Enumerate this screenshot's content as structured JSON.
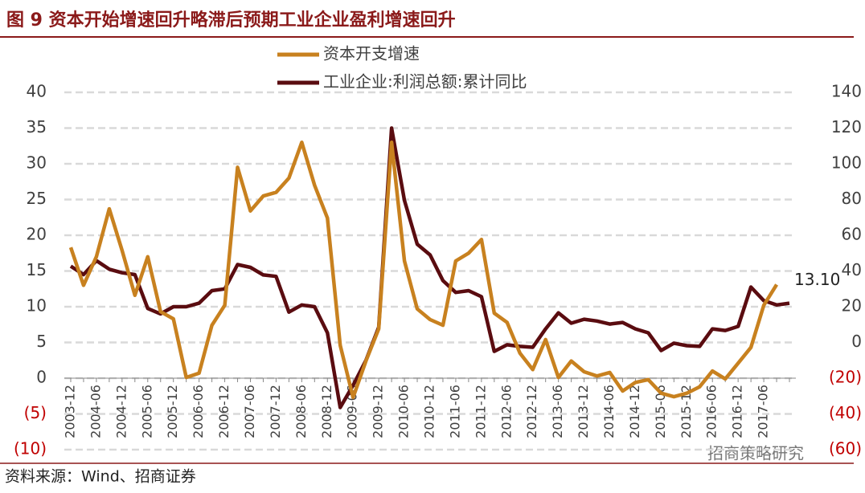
{
  "chart_data": {
    "type": "line",
    "title": "图 9  资本开始增速回升略滞后预期工业企业盈利增速回升",
    "source": "资料来源：Wind、招商证券",
    "watermark": "招商策略研究",
    "categories": [
      "2003-12",
      null,
      "2004-06",
      null,
      "2004-12",
      null,
      "2005-06",
      null,
      "2005-12",
      null,
      "2006-06",
      null,
      "2006-12",
      null,
      "2007-06",
      null,
      "2007-12",
      null,
      "2008-06",
      null,
      "2008-12",
      null,
      "2009-06",
      null,
      "2009-12",
      null,
      "2010-06",
      null,
      "2010-12",
      null,
      "2011-06",
      null,
      "2011-12",
      null,
      "2012-06",
      null,
      "2012-12",
      null,
      "2013-06",
      null,
      "2013-12",
      null,
      "2014-06",
      null,
      "2014-12",
      null,
      "2015-06",
      null,
      "2015-12",
      null,
      "2016-06",
      null,
      "2016-12",
      null,
      "2017-06",
      null,
      null
    ],
    "series": [
      {
        "name": "资本开支增速",
        "color": "#c8811f",
        "axis": "y",
        "values": [
          18.3,
          13,
          17,
          23.7,
          17.9,
          11.6,
          17,
          9.3,
          8.3,
          0.1,
          0.7,
          7.4,
          10.2,
          29.5,
          23.4,
          25.5,
          26,
          28,
          33,
          27,
          22.4,
          4.6,
          -2.7,
          2.4,
          6.9,
          33,
          16.4,
          9.7,
          8.2,
          7.4,
          16.4,
          17.5,
          19.4,
          9.1,
          7.8,
          3.5,
          1.2,
          5.4,
          0.1,
          2.4,
          0.9,
          0.3,
          0.8,
          -1.8,
          -0.6,
          -0.2,
          -2.1,
          -2.6,
          -2.1,
          -1.2,
          1,
          -0.1,
          2.1,
          4.3,
          10.2,
          13.1,
          null
        ],
        "value_labels": [
          null,
          null,
          null,
          null,
          null,
          null,
          null,
          null,
          null,
          null,
          null,
          null,
          null,
          null,
          null,
          null,
          null,
          null,
          null,
          null,
          null,
          null,
          null,
          null,
          null,
          null,
          null,
          null,
          null,
          null,
          null,
          null,
          null,
          null,
          null,
          null,
          null,
          null,
          null,
          null,
          null,
          null,
          null,
          null,
          null,
          null,
          null,
          null,
          null,
          null,
          null,
          null,
          null,
          null,
          null,
          "13.10",
          null
        ]
      },
      {
        "name": "工业企业:利润总额:累计同比",
        "color": "#5a0c10",
        "axis": "y2",
        "values": [
          42.7,
          38,
          45.8,
          41,
          39,
          38,
          19,
          16,
          20,
          20,
          22,
          29,
          30,
          43.6,
          42,
          37.8,
          37,
          17,
          21,
          20,
          5.4,
          -36.4,
          -24,
          -10,
          8.5,
          120,
          79.5,
          55,
          49,
          34.6,
          28,
          29,
          25.6,
          -5,
          -1.3,
          -2.2,
          -2.7,
          7.6,
          16.6,
          10.8,
          13,
          12,
          10.3,
          11.2,
          7.6,
          5.4,
          -4.5,
          -0.4,
          -1.8,
          -2.2,
          7.6,
          6.7,
          9,
          31,
          23.4,
          21,
          22
        ]
      }
    ],
    "ylim": [
      -10,
      40
    ],
    "yticks": [
      {
        "value": -10,
        "label": "(10)"
      },
      {
        "value": -5,
        "label": "(5)"
      },
      0,
      5,
      10,
      15,
      20,
      25,
      30,
      35,
      40
    ],
    "y2lim": [
      -60,
      140
    ],
    "y2ticks": [
      {
        "value": -60,
        "label": "(60)"
      },
      {
        "value": -40,
        "label": "(40)"
      },
      {
        "value": -20,
        "label": "(20)"
      },
      0,
      20,
      40,
      60,
      80,
      100,
      120,
      140
    ],
    "negative_tick_color": "#c00000",
    "grid": true
  }
}
